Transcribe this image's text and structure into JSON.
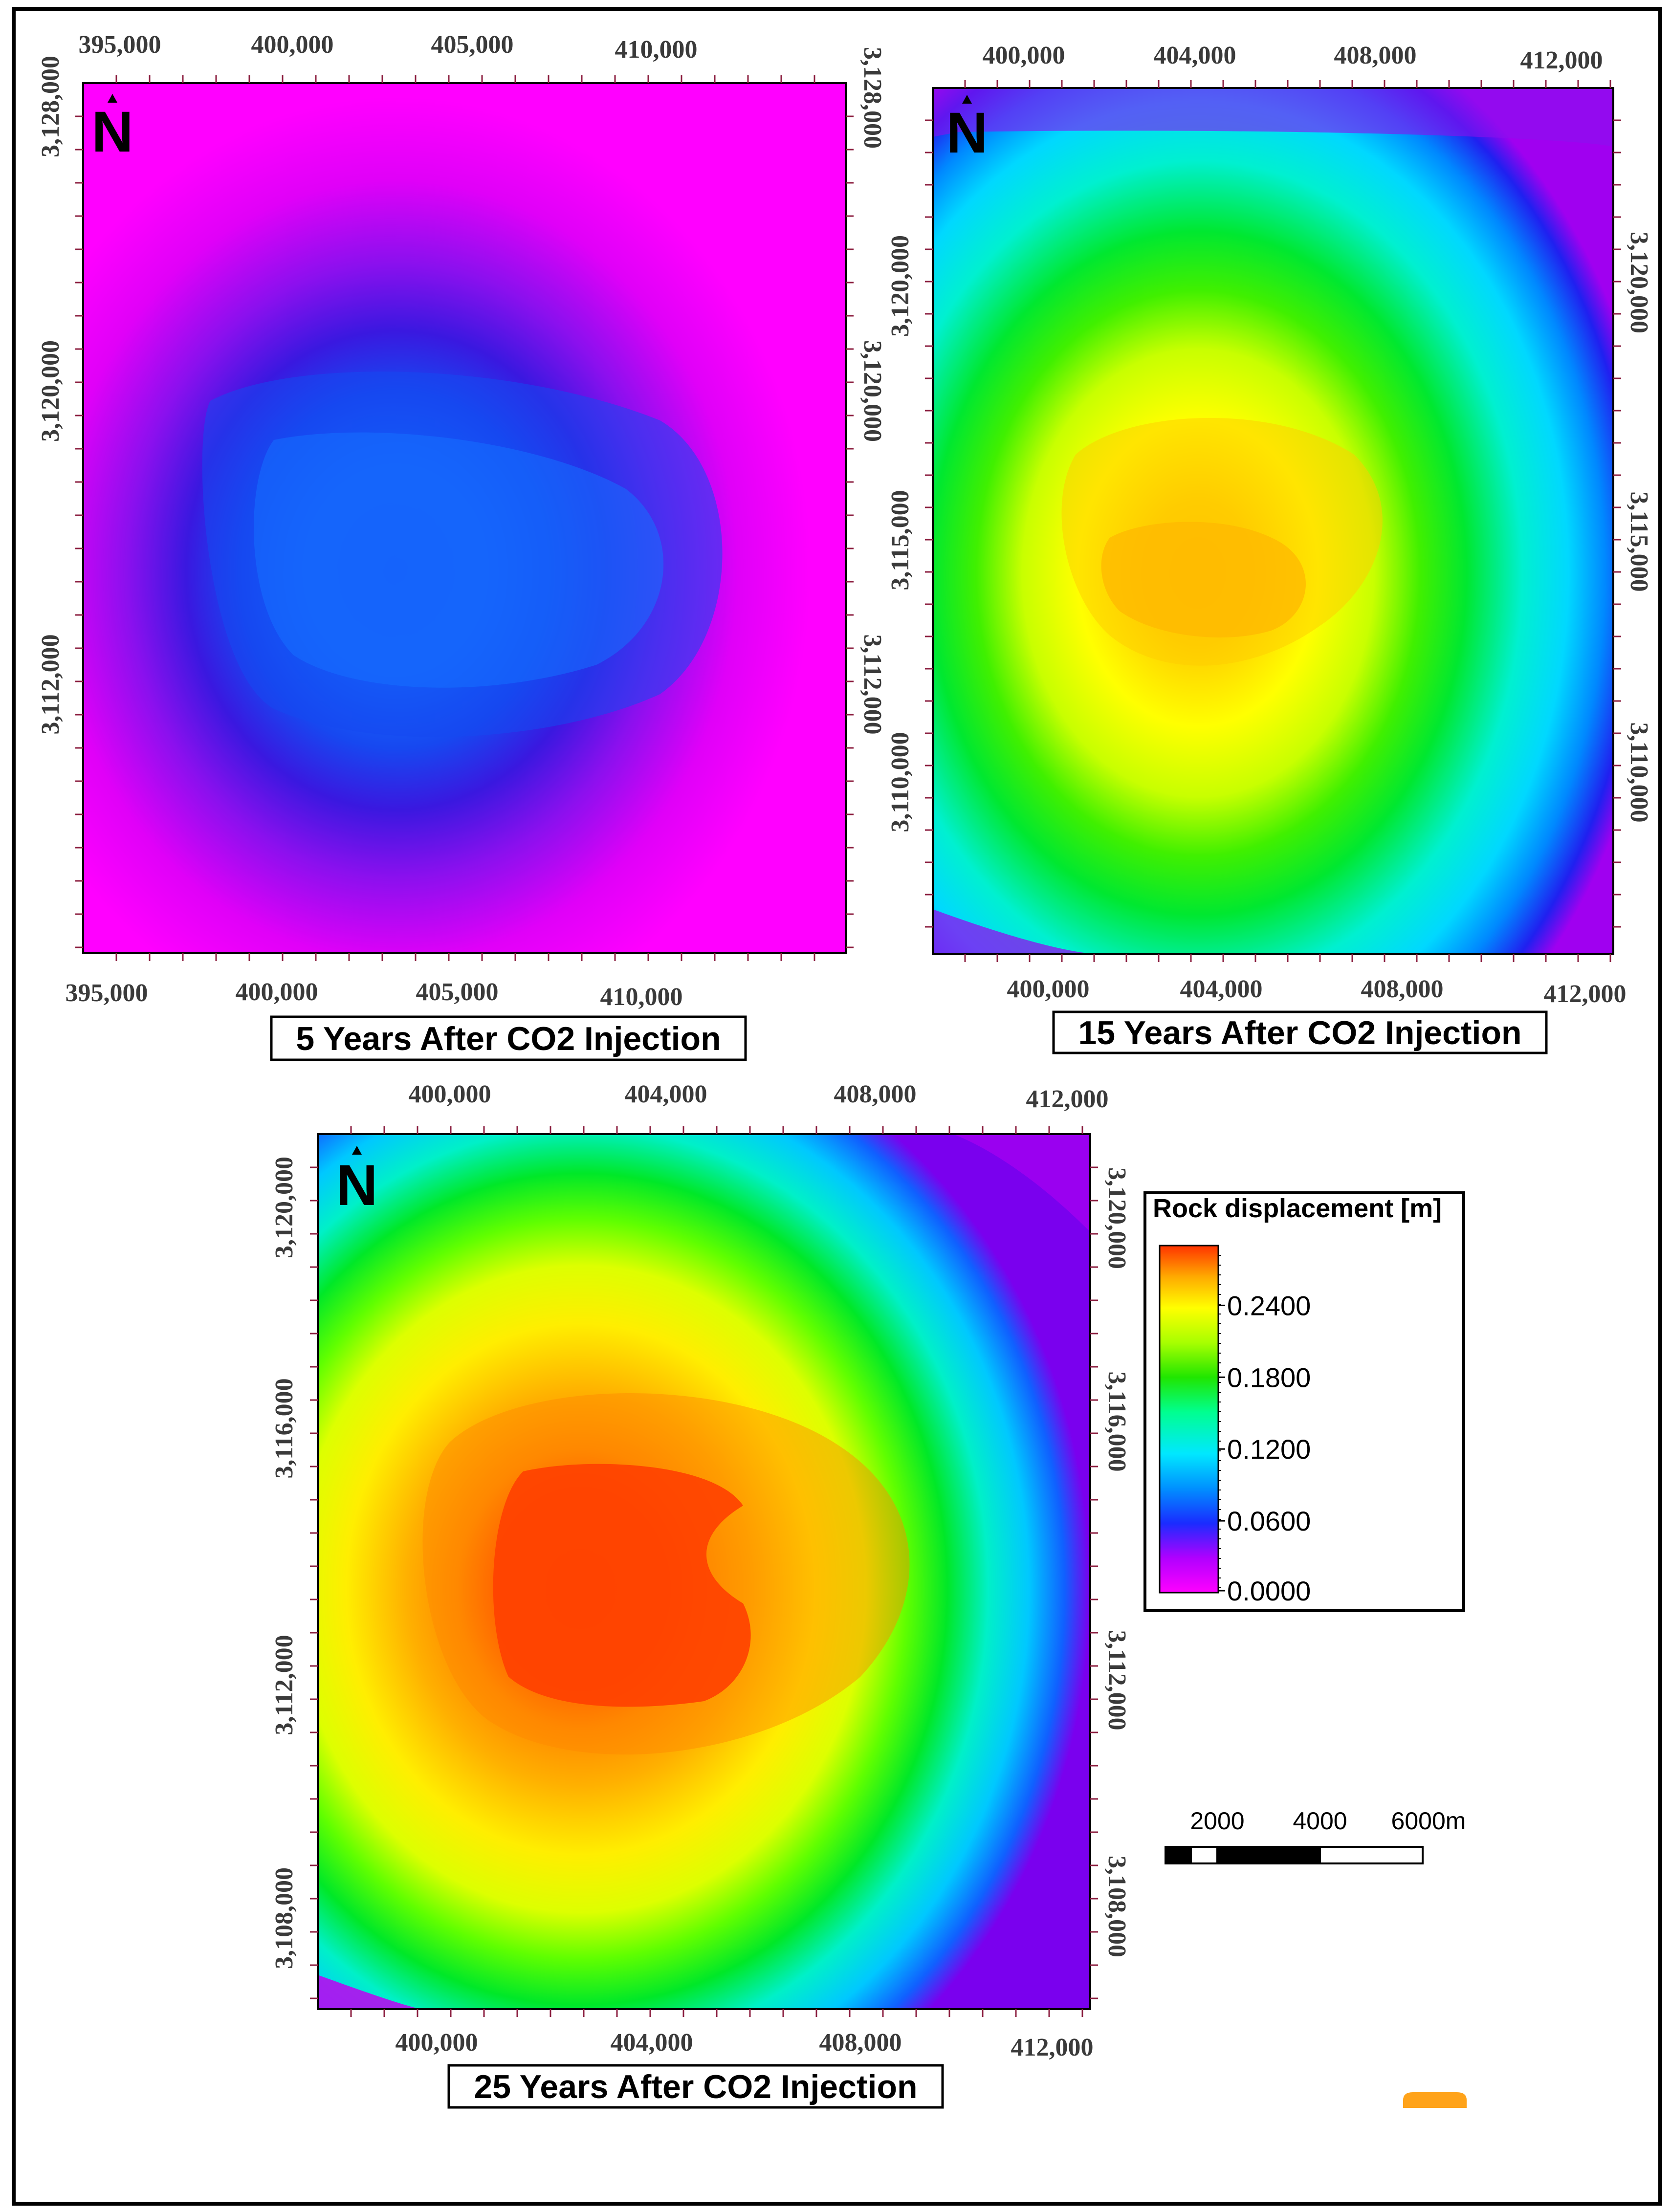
{
  "figure": {
    "north_label": "N",
    "colors": {
      "frame": "#000000",
      "tick_color": "#8b1e3f",
      "magenta": "#ff00ff",
      "blue": "#1a4dff",
      "cyan": "#00ffff",
      "green": "#00e600",
      "yellow": "#ffff00",
      "orange": "#ff9900",
      "red": "#ff3300"
    }
  },
  "chart_data": [
    {
      "type": "heatmap",
      "title": "5 Years After CO2 Injection",
      "top_x_ticks": [
        "395,000",
        "400,000",
        "405,000",
        "410,000"
      ],
      "bottom_x_ticks": [
        "395,000",
        "400,000",
        "405,000",
        "410,000"
      ],
      "left_y_ticks": [
        "3,128,000",
        "3,120,000",
        "3,112,000"
      ],
      "right_y_ticks": [
        "3,128,000",
        "3,120,000",
        "3,112,000"
      ],
      "max_displacement_m": 0.07
    },
    {
      "type": "heatmap",
      "title": "15 Years After CO2 Injection",
      "top_x_ticks": [
        "400,000",
        "404,000",
        "408,000",
        "412,000"
      ],
      "bottom_x_ticks": [
        "400,000",
        "404,000",
        "408,000",
        "412,000"
      ],
      "left_y_ticks": [
        "3,120,000",
        "3,115,000",
        "3,110,000"
      ],
      "right_y_ticks": [
        "3,120,000",
        "3,115,000",
        "3,110,000"
      ],
      "max_displacement_m": 0.23
    },
    {
      "type": "heatmap",
      "title": "25 Years After CO2 Injection",
      "top_x_ticks": [
        "400,000",
        "404,000",
        "408,000",
        "412,000"
      ],
      "bottom_x_ticks": [
        "400,000",
        "404,000",
        "408,000",
        "412,000"
      ],
      "left_y_ticks": [
        "3,120,000",
        "3,116,000",
        "3,112,000",
        "3,108,000"
      ],
      "right_y_ticks": [
        "3,120,000",
        "3,116,000",
        "3,112,000",
        "3,108,000"
      ],
      "max_displacement_m": 0.29
    }
  ],
  "legend": {
    "title": "Rock displacement [m]",
    "ticks": [
      "0.2400",
      "0.1800",
      "0.1200",
      "0.0600",
      "0.0000"
    ],
    "range": [
      0.0,
      0.29
    ]
  },
  "scale_bar": {
    "labels": [
      "2000",
      "4000",
      "6000m"
    ]
  }
}
